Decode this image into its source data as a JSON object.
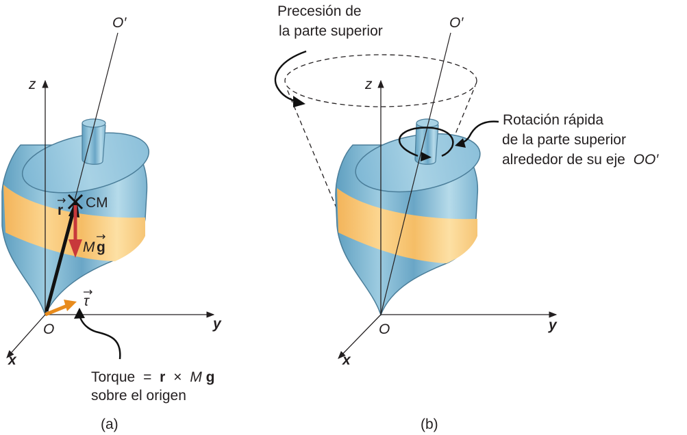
{
  "panel_a": {
    "caption": "(a)",
    "axis_z": "z",
    "axis_y": "y",
    "axis_x": "x",
    "origin": "O",
    "axis_top": "O′",
    "r_vector": "r",
    "cm_label": "CM",
    "weight_M": "M",
    "weight_g": "g",
    "torque_symbol": "τ",
    "torque_word": "Torque",
    "torque_eq": "=",
    "torque_r": "r",
    "torque_times": "×",
    "torque_M": "M",
    "torque_g": "g",
    "torque_line2": "sobre el origen"
  },
  "panel_b": {
    "caption": "(b)",
    "axis_z": "z",
    "axis_y": "y",
    "axis_x": "x",
    "origin": "O",
    "axis_top": "O′",
    "precession_line1": "Precesión de",
    "precession_line2": "la parte superior",
    "spin_line1": "Rotación rápida",
    "spin_line2": "de la parte superior",
    "spin_line3_prefix": "alrededor de su eje",
    "spin_line3_axis": "OO′"
  },
  "colors": {
    "top_blue": "#8fc4dd",
    "top_blue_dark": "#6aa9c8",
    "band_orange": "#f9c97a",
    "weight_arrow": "#c8393b",
    "torque_arrow": "#e88b1c",
    "ink": "#231f20"
  }
}
